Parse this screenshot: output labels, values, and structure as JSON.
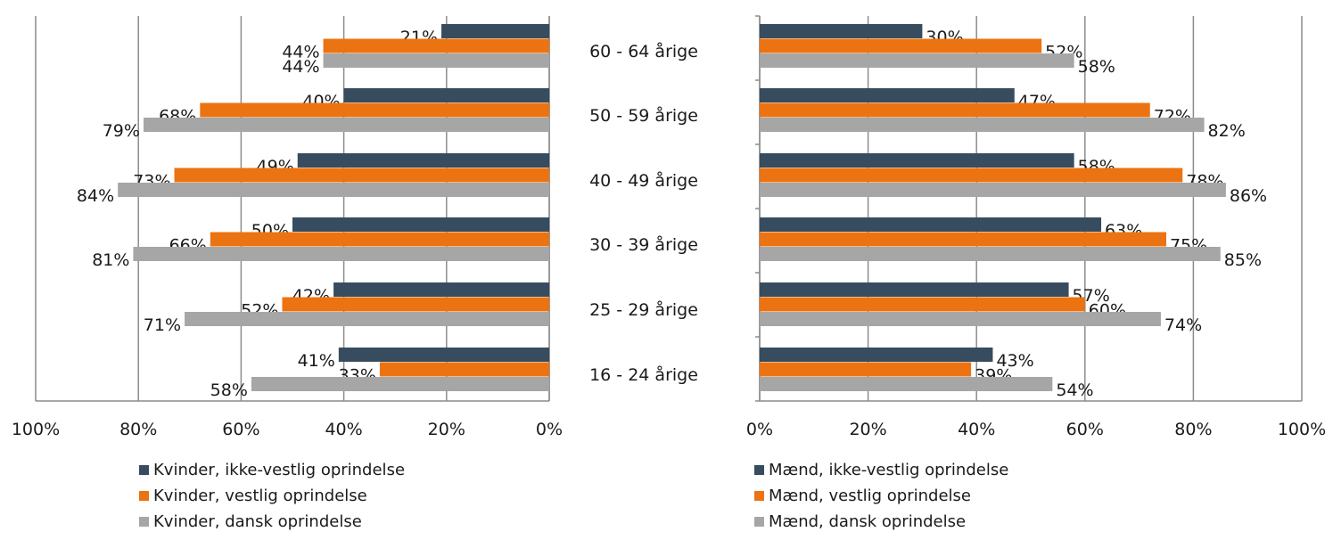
{
  "categories": [
    "60 - 64 årige",
    "50 - 59 årige",
    "40 - 49 årige",
    "30 - 39 årige",
    "25 - 29 årige",
    "16 - 24 årige"
  ],
  "colors": {
    "ikke_vestlig": "#374c5f",
    "vestlig": "#ec7311",
    "dansk": "#a6a6a6",
    "grid": "#8c8c8c"
  },
  "chart_data": [
    {
      "type": "bar",
      "orientation": "horizontal",
      "x_direction": "reversed",
      "categories": [
        "60 - 64 årige",
        "50 - 59 årige",
        "40 - 49 årige",
        "30 - 39 årige",
        "25 - 29 årige",
        "16 - 24 årige"
      ],
      "series": [
        {
          "name": "Kvinder, ikke-vestlig oprindelse",
          "key": "ikke_vestlig",
          "values": [
            21,
            40,
            49,
            50,
            42,
            41
          ],
          "labels": [
            "21%",
            "40%",
            "49%",
            "50%",
            "42%",
            "41%"
          ]
        },
        {
          "name": "Kvinder, vestlig oprindelse",
          "key": "vestlig",
          "values": [
            44,
            68,
            73,
            66,
            52,
            33
          ],
          "labels": [
            "44%",
            "68%",
            "73%",
            "66%",
            "52%",
            "33%"
          ]
        },
        {
          "name": "Kvinder, dansk oprindelse",
          "key": "dansk",
          "values": [
            44,
            79,
            84,
            81,
            71,
            58
          ],
          "labels": [
            "44%",
            "79%",
            "84%",
            "81%",
            "71%",
            "58%"
          ]
        }
      ],
      "xlim": [
        0,
        100
      ],
      "x_ticks": [
        "100%",
        "80%",
        "60%",
        "40%",
        "20%",
        "0%"
      ],
      "grid": true,
      "legend_position": "bottom"
    },
    {
      "type": "bar",
      "orientation": "horizontal",
      "x_direction": "normal",
      "categories": [
        "60 - 64 årige",
        "50 - 59 årige",
        "40 - 49 årige",
        "30 - 39 årige",
        "25 - 29 årige",
        "16 - 24 årige"
      ],
      "series": [
        {
          "name": "Mænd, ikke-vestlig oprindelse",
          "key": "ikke_vestlig",
          "values": [
            30,
            47,
            58,
            63,
            57,
            43
          ],
          "labels": [
            "30%",
            "47%",
            "58%",
            "63%",
            "57%",
            "43%"
          ]
        },
        {
          "name": "Mænd, vestlig oprindelse",
          "key": "vestlig",
          "values": [
            52,
            72,
            78,
            75,
            60,
            39
          ],
          "labels": [
            "52%",
            "72%",
            "78%",
            "75%",
            "60%",
            "39%"
          ]
        },
        {
          "name": "Mænd, dansk oprindelse",
          "key": "dansk",
          "values": [
            58,
            82,
            86,
            85,
            74,
            54
          ],
          "labels": [
            "58%",
            "82%",
            "86%",
            "85%",
            "74%",
            "54%"
          ]
        }
      ],
      "xlim": [
        0,
        100
      ],
      "x_ticks": [
        "0%",
        "20%",
        "40%",
        "60%",
        "80%",
        "100%"
      ],
      "grid": true,
      "legend_position": "bottom"
    }
  ]
}
